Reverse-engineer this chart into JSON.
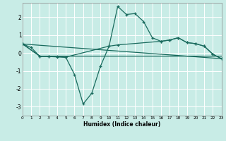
{
  "xlabel": "Humidex (Indice chaleur)",
  "bg_color": "#c8ece6",
  "line_color": "#1a6b5e",
  "grid_color": "#ffffff",
  "xlim": [
    0,
    23
  ],
  "ylim": [
    -3.5,
    2.8
  ],
  "yticks": [
    -3,
    -2,
    -1,
    0,
    1,
    2
  ],
  "xticks": [
    0,
    1,
    2,
    3,
    4,
    5,
    6,
    7,
    8,
    9,
    10,
    11,
    12,
    13,
    14,
    15,
    16,
    17,
    18,
    19,
    20,
    21,
    22,
    23
  ],
  "line1_x": [
    0,
    1,
    2,
    3,
    4,
    5,
    6,
    7,
    8,
    9,
    10,
    11,
    12,
    13,
    14,
    15,
    16,
    17,
    18,
    19,
    20,
    21,
    22,
    23
  ],
  "line1_y": [
    0.5,
    0.3,
    -0.2,
    -0.2,
    -0.22,
    -0.25,
    -1.2,
    -2.85,
    -2.25,
    -0.75,
    0.38,
    2.6,
    2.15,
    2.2,
    1.75,
    0.85,
    0.65,
    0.72,
    0.85,
    0.58,
    0.52,
    0.38,
    -0.07,
    -0.32
  ],
  "line2_x": [
    0,
    2,
    3,
    4,
    5,
    10,
    11,
    16,
    17,
    18,
    19,
    20,
    21,
    22,
    23
  ],
  "line2_y": [
    0.5,
    -0.18,
    -0.18,
    -0.2,
    -0.23,
    0.38,
    0.45,
    0.65,
    0.72,
    0.85,
    0.58,
    0.52,
    0.38,
    -0.07,
    -0.32
  ],
  "line3_x": [
    0,
    2,
    3,
    9,
    10,
    23
  ],
  "line3_y": [
    0.5,
    -0.18,
    -0.18,
    -0.18,
    -0.18,
    -0.18
  ],
  "line4_x": [
    0,
    23
  ],
  "line4_y": [
    0.5,
    -0.32
  ]
}
